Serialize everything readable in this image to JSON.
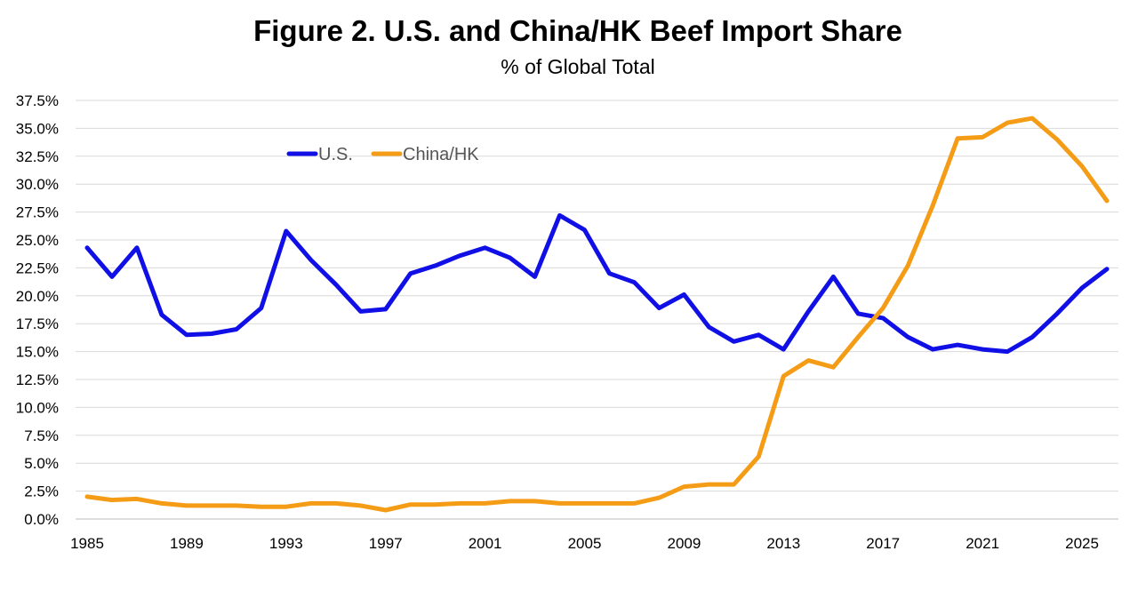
{
  "chart_data": {
    "type": "line",
    "title": "Figure 2. U.S. and China/HK Beef Import Share",
    "subtitle": "% of Global Total",
    "xlabel": "",
    "ylabel": "",
    "x": [
      1985,
      1986,
      1987,
      1988,
      1989,
      1990,
      1991,
      1992,
      1993,
      1994,
      1995,
      1996,
      1997,
      1998,
      1999,
      2000,
      2001,
      2002,
      2003,
      2004,
      2005,
      2006,
      2007,
      2008,
      2009,
      2010,
      2011,
      2012,
      2013,
      2014,
      2015,
      2016,
      2017,
      2018,
      2019,
      2020,
      2021,
      2022,
      2023,
      2024,
      2025,
      2026
    ],
    "x_tick_labels": [
      "1985",
      "1989",
      "1993",
      "1997",
      "2001",
      "2005",
      "2009",
      "2013",
      "2017",
      "2021",
      "2025"
    ],
    "ylim": [
      0,
      37.5
    ],
    "y_tick_labels": [
      "0.0%",
      "2.5%",
      "5.0%",
      "7.5%",
      "10.0%",
      "12.5%",
      "15.0%",
      "17.5%",
      "20.0%",
      "22.5%",
      "25.0%",
      "27.5%",
      "30.0%",
      "32.5%",
      "35.0%",
      "37.5%"
    ],
    "grid": true,
    "legend_position": "top-left",
    "series": [
      {
        "name": "U.S.",
        "color": "#0f0fe6",
        "values": [
          24.3,
          21.7,
          24.3,
          18.3,
          16.5,
          16.6,
          17.0,
          18.9,
          25.8,
          23.2,
          21.0,
          18.6,
          18.8,
          22.0,
          22.7,
          23.6,
          24.3,
          23.4,
          21.7,
          27.2,
          25.9,
          22.0,
          21.2,
          18.9,
          20.1,
          17.2,
          15.9,
          16.5,
          15.2,
          18.6,
          21.7,
          18.4,
          18.0,
          16.3,
          15.2,
          15.6,
          15.2,
          15.0,
          16.3,
          18.4,
          20.7,
          22.4
        ]
      },
      {
        "name": "China/HK",
        "color": "#f59c16",
        "values": [
          2.0,
          1.7,
          1.8,
          1.4,
          1.2,
          1.2,
          1.2,
          1.1,
          1.1,
          1.4,
          1.4,
          1.2,
          0.8,
          1.3,
          1.3,
          1.4,
          1.4,
          1.6,
          1.6,
          1.4,
          1.4,
          1.4,
          1.4,
          1.9,
          2.9,
          3.1,
          3.1,
          5.6,
          12.8,
          14.2,
          13.6,
          16.3,
          18.9,
          22.7,
          28.1,
          34.1,
          34.2,
          35.5,
          35.9,
          34.0,
          31.6,
          28.5
        ]
      }
    ]
  }
}
